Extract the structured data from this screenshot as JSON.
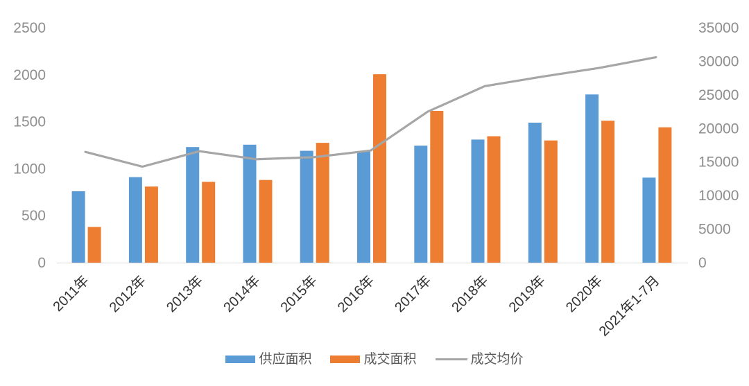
{
  "chart_data": {
    "type": "bar",
    "subtype": "grouped-bars-with-line-combo",
    "title": "",
    "xlabel": "",
    "ylabel": "",
    "grid": false,
    "legend_position": "bottom",
    "categories": [
      "2011年",
      "2012年",
      "2013年",
      "2014年",
      "2015年",
      "2016年",
      "2017年",
      "2018年",
      "2019年",
      "2020年",
      "2021年1-7月"
    ],
    "series": [
      {
        "name": "供应面积",
        "type": "bar",
        "axis": "left",
        "color": "#5B9BD5",
        "values": [
          760,
          910,
          1230,
          1255,
          1190,
          1185,
          1245,
          1310,
          1490,
          1790,
          905
        ]
      },
      {
        "name": "成交面积",
        "type": "bar",
        "axis": "left",
        "color": "#ED7D31",
        "values": [
          380,
          810,
          860,
          880,
          1275,
          2005,
          1615,
          1345,
          1300,
          1510,
          1440
        ]
      },
      {
        "name": "成交均价",
        "type": "line",
        "axis": "right",
        "color": "#A6A6A6",
        "values": [
          16500,
          14300,
          16600,
          15400,
          15700,
          16700,
          22500,
          26300,
          27700,
          29000,
          30600
        ]
      }
    ],
    "left_axis": {
      "min": 0,
      "max": 2500,
      "step": 500,
      "tick_labels": [
        "0",
        "500",
        "1000",
        "1500",
        "2000",
        "2500"
      ]
    },
    "right_axis": {
      "min": 0,
      "max": 35000,
      "step": 5000,
      "tick_labels": [
        "0",
        "5000",
        "10000",
        "15000",
        "20000",
        "25000",
        "30000",
        "35000"
      ]
    }
  },
  "legend": {
    "items": [
      {
        "label": "供应面积",
        "swatch": "bar",
        "color": "#5B9BD5"
      },
      {
        "label": "成交面积",
        "swatch": "bar",
        "color": "#ED7D31"
      },
      {
        "label": "成交均价",
        "swatch": "line",
        "color": "#A6A6A6"
      }
    ]
  },
  "colors": {
    "background": "#FFFFFF",
    "axis_line": "#D9D9D9",
    "y_tick_text": "#8E8E8E",
    "x_tick_text": "#333333",
    "legend_text": "#595959"
  }
}
